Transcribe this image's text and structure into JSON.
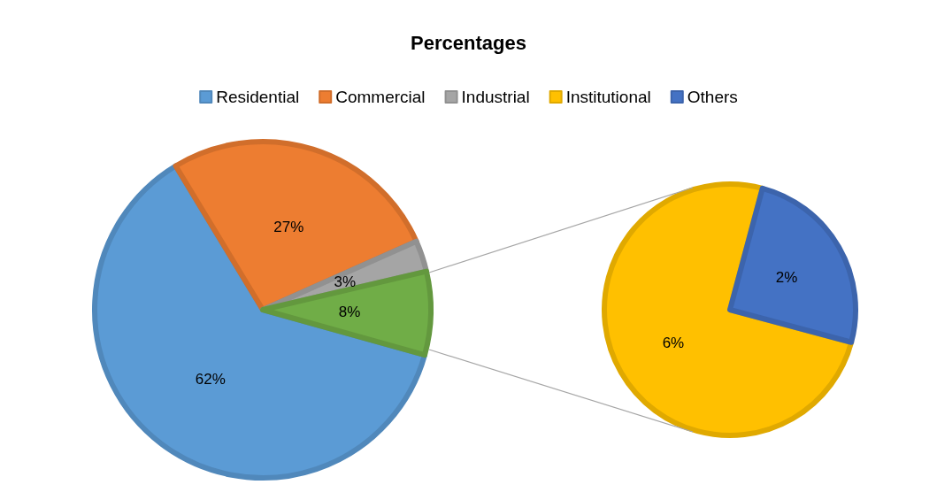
{
  "chart_data": [
    {
      "type": "pie",
      "title": "Percentages",
      "legend": "top",
      "categories": [
        "Residential",
        "Commercial",
        "Industrial",
        null
      ],
      "values": [
        62,
        27,
        3,
        8
      ],
      "value_labels": [
        "62%",
        "27%",
        "3%",
        "8%"
      ],
      "colors": [
        "#5b9bd5",
        "#ed7d31",
        "#a5a5a5",
        "#70ad47"
      ]
    },
    {
      "type": "pie",
      "legend": "top",
      "categories": [
        "Institutional",
        "Others"
      ],
      "values": [
        6,
        2
      ],
      "value_labels": [
        "6%",
        "2%"
      ],
      "colors": [
        "#ffc000",
        "#4472c4"
      ]
    }
  ]
}
